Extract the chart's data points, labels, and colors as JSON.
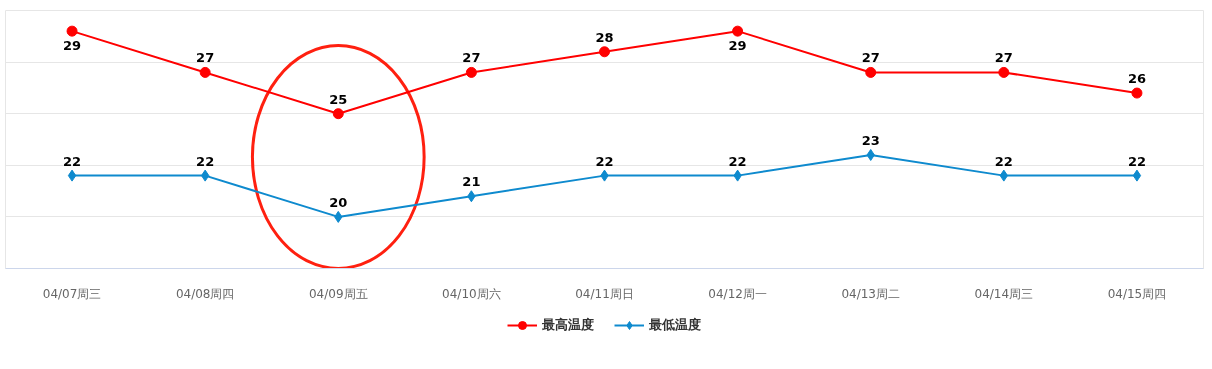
{
  "chart_data": {
    "type": "line",
    "categories": [
      "04/07周三",
      "04/08周四",
      "04/09周五",
      "04/10周六",
      "04/11周日",
      "04/12周一",
      "04/13周二",
      "04/14周三",
      "04/15周四"
    ],
    "series": [
      {
        "name": "最高温度",
        "color": "#ff0000",
        "marker": "circle",
        "values": [
          29,
          27,
          25,
          27,
          28,
          29,
          27,
          27,
          26
        ]
      },
      {
        "name": "最低温度",
        "color": "#0e8ace",
        "marker": "diamond",
        "values": [
          22,
          22,
          20,
          21,
          22,
          22,
          23,
          22,
          22
        ]
      }
    ],
    "ylim": [
      17.5,
      30
    ],
    "yticks": [
      {
        "value": 17.5,
        "label": null
      },
      {
        "value": 20,
        "label": null
      },
      {
        "value": 22.5,
        "label": null
      },
      {
        "value": 25,
        "label": null
      },
      {
        "value": 27.5,
        "label": null
      },
      {
        "value": 30,
        "label": null
      }
    ],
    "tick_labels": "x",
    "grid": "y",
    "legend": "bottom",
    "data_labels": true,
    "line_style": "solid"
  }
}
